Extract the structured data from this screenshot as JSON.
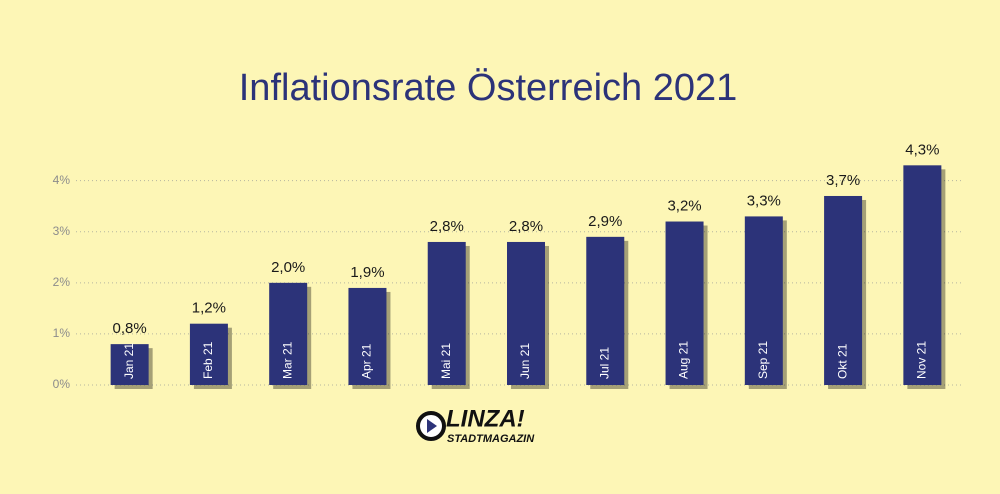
{
  "chart_data": {
    "type": "bar",
    "title": "Inflationsrate Österreich 2021",
    "categories": [
      "Jan 21",
      "Feb 21",
      "Mar 21",
      "Apr 21",
      "Mai 21",
      "Jun 21",
      "Jul 21",
      "Aug 21",
      "Sep 21",
      "Okt 21",
      "Nov 21"
    ],
    "values": [
      0.8,
      1.2,
      2.0,
      1.9,
      2.8,
      2.8,
      2.9,
      3.2,
      3.3,
      3.7,
      4.3
    ],
    "value_labels": [
      "0,8%",
      "1,2%",
      "2,0%",
      "1,9%",
      "2,8%",
      "2,8%",
      "2,9%",
      "3,2%",
      "3,3%",
      "3,7%",
      "4,3%"
    ],
    "color": "#2c3379",
    "ylim": [
      0,
      4.6
    ],
    "yticks": [
      {
        "value": 0,
        "label": "0%"
      },
      {
        "value": 1,
        "label": "1%"
      },
      {
        "value": 2,
        "label": "2%"
      },
      {
        "value": 3,
        "label": "3%"
      },
      {
        "value": 4,
        "label": "4%"
      }
    ],
    "grid": true
  },
  "logo": {
    "name": "LINZA!",
    "subtitle": "STADTMAGAZIN"
  }
}
